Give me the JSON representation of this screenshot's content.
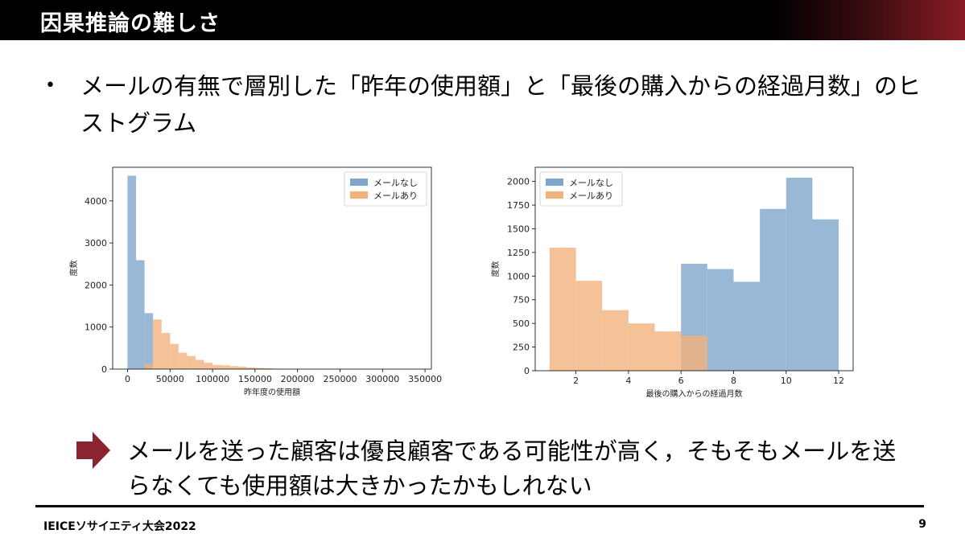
{
  "slide": {
    "title": "因果推論の難しさ",
    "bullet_marker": "•",
    "bullet_text": "メールの有無で層別した「昨年の使用額」と「最後の購入からの経過月数」のヒストグラム",
    "conclusion": "メールを送った顧客は優良顧客である可能性が高く，そもそもメールを送らなくても使用額は大きかったかもしれない",
    "footer_left": "IEICEソサイエティ大会2022",
    "page_number": "9",
    "colors": {
      "accent": "#8b2332",
      "series_no_mail": "#7ea6cc",
      "series_mail": "#f2b27c"
    }
  },
  "chart_data": [
    {
      "type": "bar",
      "xlabel": "昨年度の使用額",
      "ylabel": "度数",
      "xlim": [
        -17500,
        357500
      ],
      "ylim": [
        0,
        4800
      ],
      "xticks": [
        0,
        50000,
        100000,
        150000,
        200000,
        250000,
        300000,
        350000
      ],
      "xtick_labels": [
        "0",
        "50000",
        "100000",
        "150000",
        "200000",
        "250000",
        "300000",
        "350000"
      ],
      "yticks": [
        0,
        1000,
        2000,
        3000,
        4000
      ],
      "ytick_labels": [
        "0",
        "1000",
        "2000",
        "3000",
        "4000"
      ],
      "legend_position": "top-right",
      "series": [
        {
          "name": "メールなし",
          "bins": [
            [
              0,
              10000
            ],
            [
              10000,
              20000
            ],
            [
              20000,
              30000
            ]
          ],
          "values": [
            4600,
            2590,
            1330
          ]
        },
        {
          "name": "メールあり",
          "bins": [
            [
              20000,
              30000
            ],
            [
              30000,
              40000
            ],
            [
              40000,
              50000
            ],
            [
              50000,
              60000
            ],
            [
              60000,
              70000
            ],
            [
              70000,
              80000
            ],
            [
              80000,
              90000
            ],
            [
              90000,
              100000
            ],
            [
              100000,
              110000
            ],
            [
              110000,
              120000
            ],
            [
              120000,
              130000
            ],
            [
              130000,
              140000
            ],
            [
              140000,
              150000
            ],
            [
              150000,
              160000
            ],
            [
              160000,
              170000
            ],
            [
              170000,
              180000
            ]
          ],
          "values": [
            130,
            1180,
            860,
            600,
            390,
            310,
            220,
            150,
            100,
            90,
            70,
            60,
            40,
            30,
            20,
            10
          ]
        }
      ]
    },
    {
      "type": "bar",
      "xlabel": "最後の購入からの経過月数",
      "ylabel": "度数",
      "xlim": [
        0.45,
        12.55
      ],
      "ylim": [
        0,
        2150
      ],
      "xticks": [
        2,
        4,
        6,
        8,
        10,
        12
      ],
      "xtick_labels": [
        "2",
        "4",
        "6",
        "8",
        "10",
        "12"
      ],
      "yticks": [
        0,
        250,
        500,
        750,
        1000,
        1250,
        1500,
        1750,
        2000
      ],
      "ytick_labels": [
        "0",
        "250",
        "500",
        "750",
        "1000",
        "1250",
        "1500",
        "1750",
        "2000"
      ],
      "legend_position": "top-left",
      "series": [
        {
          "name": "メールなし",
          "bins": [
            [
              6,
              7
            ],
            [
              7,
              8
            ],
            [
              8,
              9
            ],
            [
              9,
              10
            ],
            [
              10,
              11
            ],
            [
              11,
              12
            ]
          ],
          "values": [
            1130,
            1075,
            940,
            1710,
            2040,
            1600
          ]
        },
        {
          "name": "メールあり",
          "bins": [
            [
              1,
              2
            ],
            [
              2,
              3
            ],
            [
              3,
              4
            ],
            [
              4,
              5
            ],
            [
              5,
              6
            ],
            [
              6,
              7
            ]
          ],
          "values": [
            1300,
            950,
            640,
            500,
            415,
            370
          ]
        }
      ]
    }
  ]
}
